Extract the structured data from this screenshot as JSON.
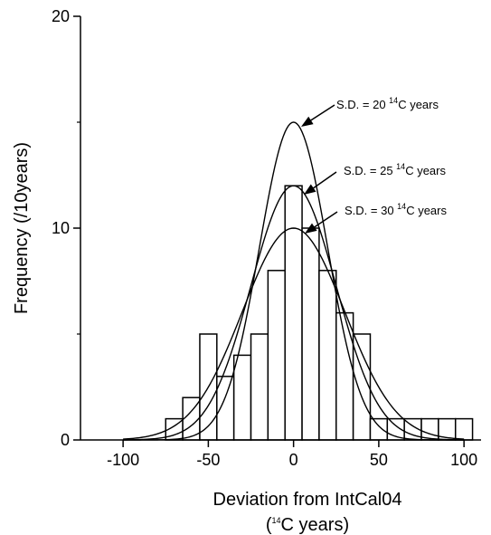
{
  "chart_data": {
    "type": "bar",
    "xlabel_line1": "Deviation from IntCal04",
    "xlabel_line2_pre": "(",
    "xlabel_line2_sup": "14",
    "xlabel_line2_post": "C years)",
    "ylabel": "Frequency (/10years)",
    "xlim": [
      -125,
      110
    ],
    "ylim": [
      0,
      20
    ],
    "x_ticks": [
      -100,
      -50,
      0,
      50,
      100
    ],
    "x_tick_labels": [
      "-100",
      "-50",
      "0",
      "50",
      "100"
    ],
    "y_ticks": [
      0,
      10,
      20
    ],
    "y_tick_labels": [
      "0",
      "10",
      "20"
    ],
    "y_minor_ticks": [
      5,
      15
    ],
    "bin_width": 10,
    "bins": [
      {
        "left": -75,
        "count": 1
      },
      {
        "left": -65,
        "count": 2
      },
      {
        "left": -55,
        "count": 5
      },
      {
        "left": -45,
        "count": 3
      },
      {
        "left": -35,
        "count": 4
      },
      {
        "left": -25,
        "count": 5
      },
      {
        "left": -15,
        "count": 8
      },
      {
        "left": -5,
        "count": 12
      },
      {
        "left": 5,
        "count": 10
      },
      {
        "left": 15,
        "count": 8
      },
      {
        "left": 25,
        "count": 6
      },
      {
        "left": 35,
        "count": 5
      },
      {
        "left": 45,
        "count": 1
      },
      {
        "left": 55,
        "count": 1
      },
      {
        "left": 65,
        "count": 1
      },
      {
        "left": 75,
        "count": 1
      },
      {
        "left": 85,
        "count": 1
      },
      {
        "left": 95,
        "count": 1
      }
    ],
    "curves": [
      {
        "sd": 20,
        "peak": 15,
        "label_pre": "S.D. = 20 ",
        "label_sup": "14",
        "label_post": "C years"
      },
      {
        "sd": 25,
        "peak": 12,
        "label_pre": "S.D. = 25 ",
        "label_sup": "14",
        "label_post": "C years"
      },
      {
        "sd": 30,
        "peak": 10,
        "label_pre": "S.D. = 30 ",
        "label_sup": "14",
        "label_post": "C years"
      }
    ],
    "grid": false
  }
}
